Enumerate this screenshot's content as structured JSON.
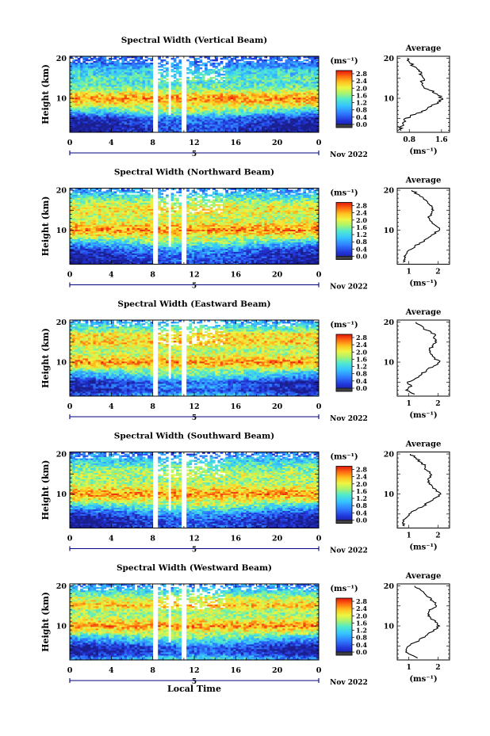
{
  "figure": {
    "xlabel": "Local Time",
    "date_label": "Nov 2022",
    "day_label": "5",
    "avg_title": "Average",
    "unit_label": "(ms⁻¹)",
    "colorbar_ticks": [
      "2.8",
      "2.4",
      "2.0",
      "1.6",
      "1.2",
      "0.8",
      "0.4",
      "0.0"
    ],
    "colorbar_colors": [
      "#e5170f",
      "#ff7a00",
      "#ffd200",
      "#b9f04b",
      "#4be3b0",
      "#2fb2ff",
      "#2f62ff",
      "#2a2a9e",
      "#404040"
    ],
    "axis_color": "#000080"
  },
  "chart_data": [
    {
      "type": "heatmap",
      "title": "Spectral Width (Vertical Beam)",
      "xlabel": "",
      "ylabel": "Height (km)",
      "x_ticks": [
        "0",
        "4",
        "8",
        "12",
        "16",
        "20",
        "0"
      ],
      "y_ticks": [
        "20",
        "10"
      ],
      "xlim": [
        0,
        24
      ],
      "ylim": [
        1.5,
        20.5
      ],
      "avg_profile": {
        "x_ticks": [
          "0.8",
          "1.6"
        ],
        "xlim": [
          0.5,
          1.8
        ],
        "height": [
          2,
          3,
          4,
          5,
          6,
          7,
          8,
          9,
          10,
          11,
          12,
          13,
          14,
          15,
          16,
          17,
          18,
          19,
          20
        ],
        "width": [
          0.6,
          0.6,
          0.65,
          0.7,
          0.95,
          1.2,
          1.35,
          1.5,
          1.62,
          1.5,
          1.3,
          1.15,
          1.1,
          1.15,
          1.05,
          1.05,
          0.9,
          0.8,
          0.75
        ]
      }
    },
    {
      "type": "heatmap",
      "title": "Spectral Width (Northward Beam)",
      "xlabel": "",
      "ylabel": "Height (km)",
      "x_ticks": [
        "0",
        "4",
        "8",
        "12",
        "16",
        "20",
        "0"
      ],
      "y_ticks": [
        "20",
        "10"
      ],
      "xlim": [
        0,
        24
      ],
      "ylim": [
        1.5,
        20.5
      ],
      "avg_profile": {
        "x_ticks": [
          "1",
          "2"
        ],
        "xlim": [
          0.6,
          2.4
        ],
        "height": [
          2,
          3,
          4,
          5,
          6,
          7,
          8,
          9,
          10,
          11,
          12,
          13,
          14,
          15,
          16,
          17,
          18,
          19,
          20
        ],
        "width": [
          0.8,
          0.85,
          0.9,
          1.0,
          1.2,
          1.45,
          1.65,
          1.85,
          2.05,
          1.95,
          1.8,
          1.7,
          1.75,
          1.85,
          1.8,
          1.65,
          1.5,
          1.3,
          1.1
        ]
      }
    },
    {
      "type": "heatmap",
      "title": "Spectral Width (Eastward Beam)",
      "xlabel": "",
      "ylabel": "Height (km)",
      "x_ticks": [
        "0",
        "4",
        "8",
        "12",
        "16",
        "20",
        "0"
      ],
      "y_ticks": [
        "20",
        "10"
      ],
      "xlim": [
        0,
        24
      ],
      "ylim": [
        1.5,
        20.5
      ],
      "avg_profile": {
        "x_ticks": [
          "1",
          "2"
        ],
        "xlim": [
          0.6,
          2.4
        ],
        "height": [
          2,
          3,
          4,
          5,
          6,
          7,
          8,
          9,
          10,
          11,
          12,
          13,
          14,
          15,
          16,
          17,
          18,
          19,
          20
        ],
        "width": [
          1.2,
          0.9,
          1.1,
          0.95,
          1.25,
          1.45,
          1.6,
          1.85,
          2.05,
          1.9,
          1.75,
          1.7,
          1.8,
          1.95,
          1.85,
          1.9,
          1.6,
          1.45,
          1.25
        ]
      }
    },
    {
      "type": "heatmap",
      "title": "Spectral Width (Southward Beam)",
      "xlabel": "",
      "ylabel": "Height (km)",
      "x_ticks": [
        "0",
        "4",
        "8",
        "12",
        "16",
        "20",
        "0"
      ],
      "y_ticks": [
        "20",
        "10"
      ],
      "xlim": [
        0,
        24
      ],
      "ylim": [
        1.5,
        20.5
      ],
      "avg_profile": {
        "x_ticks": [
          "1",
          "2"
        ],
        "xlim": [
          0.6,
          2.4
        ],
        "height": [
          2,
          3,
          4,
          5,
          6,
          7,
          8,
          9,
          10,
          11,
          12,
          13,
          14,
          15,
          16,
          17,
          18,
          19,
          20
        ],
        "width": [
          0.85,
          0.8,
          0.9,
          1.0,
          1.25,
          1.5,
          1.7,
          1.9,
          2.1,
          1.95,
          1.8,
          1.65,
          1.7,
          1.75,
          1.6,
          1.55,
          1.4,
          1.25,
          1.05
        ]
      }
    },
    {
      "type": "heatmap",
      "title": "Spectral Width (Westward Beam)",
      "xlabel": "Local Time",
      "ylabel": "Height (km)",
      "x_ticks": [
        "0",
        "4",
        "8",
        "12",
        "16",
        "20",
        "0"
      ],
      "y_ticks": [
        "20",
        "10"
      ],
      "xlim": [
        0,
        24
      ],
      "ylim": [
        1.5,
        20.5
      ],
      "avg_profile": {
        "x_ticks": [
          "1",
          "2"
        ],
        "xlim": [
          0.6,
          2.4
        ],
        "height": [
          2,
          3,
          4,
          5,
          6,
          7,
          8,
          9,
          10,
          11,
          12,
          13,
          14,
          15,
          16,
          17,
          18,
          19,
          20
        ],
        "width": [
          1.3,
          1.0,
          0.9,
          1.0,
          1.25,
          1.45,
          1.65,
          1.85,
          2.05,
          1.9,
          1.75,
          1.65,
          1.7,
          1.95,
          1.85,
          1.75,
          1.55,
          1.4,
          1.2
        ]
      }
    }
  ]
}
